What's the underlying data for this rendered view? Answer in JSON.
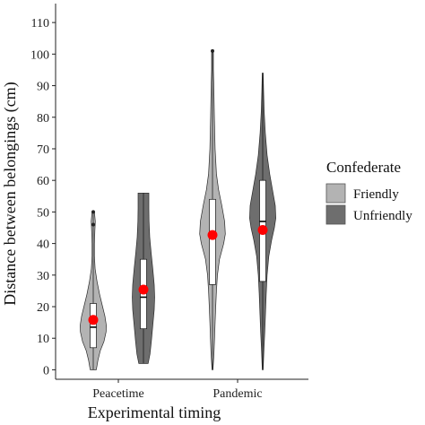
{
  "chart_data": {
    "type": "violin",
    "title": "",
    "xlabel": "Experimental timing",
    "ylabel": "Distance between belongings (cm)",
    "ylim": [
      -3,
      116
    ],
    "yticks": [
      0,
      10,
      20,
      30,
      40,
      50,
      60,
      70,
      80,
      90,
      100,
      110
    ],
    "categories": [
      "Peacetime",
      "Pandemic"
    ],
    "legend": {
      "title": "Confederate",
      "position": "right"
    },
    "grid": false,
    "series": [
      {
        "name": "Friendly",
        "color": "#b3b3b3",
        "groups": [
          {
            "category": "Peacetime",
            "min": 0,
            "q1": 7,
            "median": 13.5,
            "q3": 21,
            "max": 50,
            "mean": 15.8,
            "outliers": [
              46,
              50
            ],
            "density": [
              [
                0,
                0.13
              ],
              [
                3,
                0.2
              ],
              [
                6,
                0.3
              ],
              [
                9,
                0.46
              ],
              [
                12,
                0.55
              ],
              [
                14,
                0.56
              ],
              [
                17,
                0.5
              ],
              [
                20,
                0.4
              ],
              [
                24,
                0.27
              ],
              [
                28,
                0.16
              ],
              [
                32,
                0.08
              ],
              [
                36,
                0.05
              ],
              [
                40,
                0.05
              ],
              [
                44,
                0.07
              ],
              [
                47,
                0.09
              ],
              [
                50,
                0.05
              ]
            ]
          },
          {
            "category": "Pandemic",
            "min": 0,
            "q1": 27,
            "median": 42,
            "q3": 54,
            "max": 101,
            "mean": 42.7,
            "outliers": [
              101
            ],
            "density": [
              [
                0,
                0.02
              ],
              [
                5,
                0.06
              ],
              [
                10,
                0.09
              ],
              [
                15,
                0.11
              ],
              [
                20,
                0.14
              ],
              [
                25,
                0.17
              ],
              [
                30,
                0.21
              ],
              [
                35,
                0.3
              ],
              [
                40,
                0.48
              ],
              [
                43,
                0.55
              ],
              [
                47,
                0.52
              ],
              [
                52,
                0.4
              ],
              [
                57,
                0.26
              ],
              [
                62,
                0.17
              ],
              [
                70,
                0.11
              ],
              [
                80,
                0.08
              ],
              [
                88,
                0.06
              ],
              [
                95,
                0.04
              ],
              [
                100,
                0.04
              ],
              [
                101,
                0.03
              ]
            ]
          }
        ]
      },
      {
        "name": "Unfriendly",
        "color": "#6e6e6e",
        "groups": [
          {
            "category": "Peacetime",
            "min": 2,
            "q1": 13,
            "median": 23,
            "q3": 35,
            "max": 56,
            "mean": 25.4,
            "outliers": [],
            "density": [
              [
                2,
                0.2
              ],
              [
                5,
                0.28
              ],
              [
                9,
                0.34
              ],
              [
                14,
                0.4
              ],
              [
                19,
                0.46
              ],
              [
                23,
                0.48
              ],
              [
                27,
                0.46
              ],
              [
                32,
                0.4
              ],
              [
                37,
                0.33
              ],
              [
                42,
                0.27
              ],
              [
                47,
                0.24
              ],
              [
                51,
                0.23
              ],
              [
                54,
                0.23
              ],
              [
                56,
                0.23
              ]
            ]
          },
          {
            "category": "Pandemic",
            "min": 0,
            "q1": 28,
            "median": 47,
            "q3": 60,
            "max": 94,
            "mean": 44.3,
            "outliers": [],
            "density": [
              [
                0,
                0.02
              ],
              [
                6,
                0.05
              ],
              [
                12,
                0.09
              ],
              [
                18,
                0.12
              ],
              [
                24,
                0.15
              ],
              [
                30,
                0.19
              ],
              [
                36,
                0.26
              ],
              [
                41,
                0.38
              ],
              [
                45,
                0.5
              ],
              [
                48,
                0.56
              ],
              [
                52,
                0.54
              ],
              [
                57,
                0.42
              ],
              [
                62,
                0.3
              ],
              [
                68,
                0.19
              ],
              [
                75,
                0.11
              ],
              [
                82,
                0.06
              ],
              [
                88,
                0.04
              ],
              [
                94,
                0.02
              ]
            ]
          }
        ]
      }
    ]
  }
}
